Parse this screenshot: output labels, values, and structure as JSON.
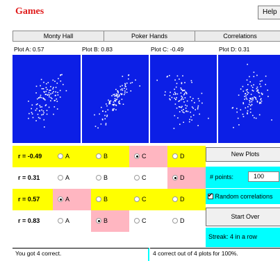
{
  "header": {
    "title": "Games",
    "help_label": "Help"
  },
  "tabs": [
    "Monty Hall",
    "Poker Hands",
    "Correlations"
  ],
  "plots": [
    {
      "label": "Plot A: 0.57",
      "r": 0.57
    },
    {
      "label": "Plot B: 0.83",
      "r": 0.83
    },
    {
      "label": "Plot C: -0.49",
      "r": -0.49
    },
    {
      "label": "Plot D: 0.31",
      "r": 0.31
    }
  ],
  "answers": {
    "options": [
      "A",
      "B",
      "C",
      "D"
    ],
    "rows": [
      {
        "label": "r = -0.49",
        "selected": "C"
      },
      {
        "label": "r = 0.31",
        "selected": "D"
      },
      {
        "label": "r = 0.57",
        "selected": "A"
      },
      {
        "label": "r = 0.83",
        "selected": "B"
      }
    ]
  },
  "controls": {
    "new_plots_label": "New Plots",
    "points_label": "# points:",
    "points_value": "100",
    "random_corr_label": "Random correlations",
    "random_corr_checked": true,
    "start_over_label": "Start Over",
    "streak_text": "Streak: 4 in a row"
  },
  "status": {
    "left": "You got 4 correct.",
    "right": "4 correct out of 4 plots for 100%."
  },
  "colors": {
    "plot_bg": "#0c1fe6",
    "row_highlight": "#ffff00",
    "selected_cell": "#ffb6c1",
    "accent_cyan": "#00ffff",
    "title_red": "#e01b1b"
  }
}
